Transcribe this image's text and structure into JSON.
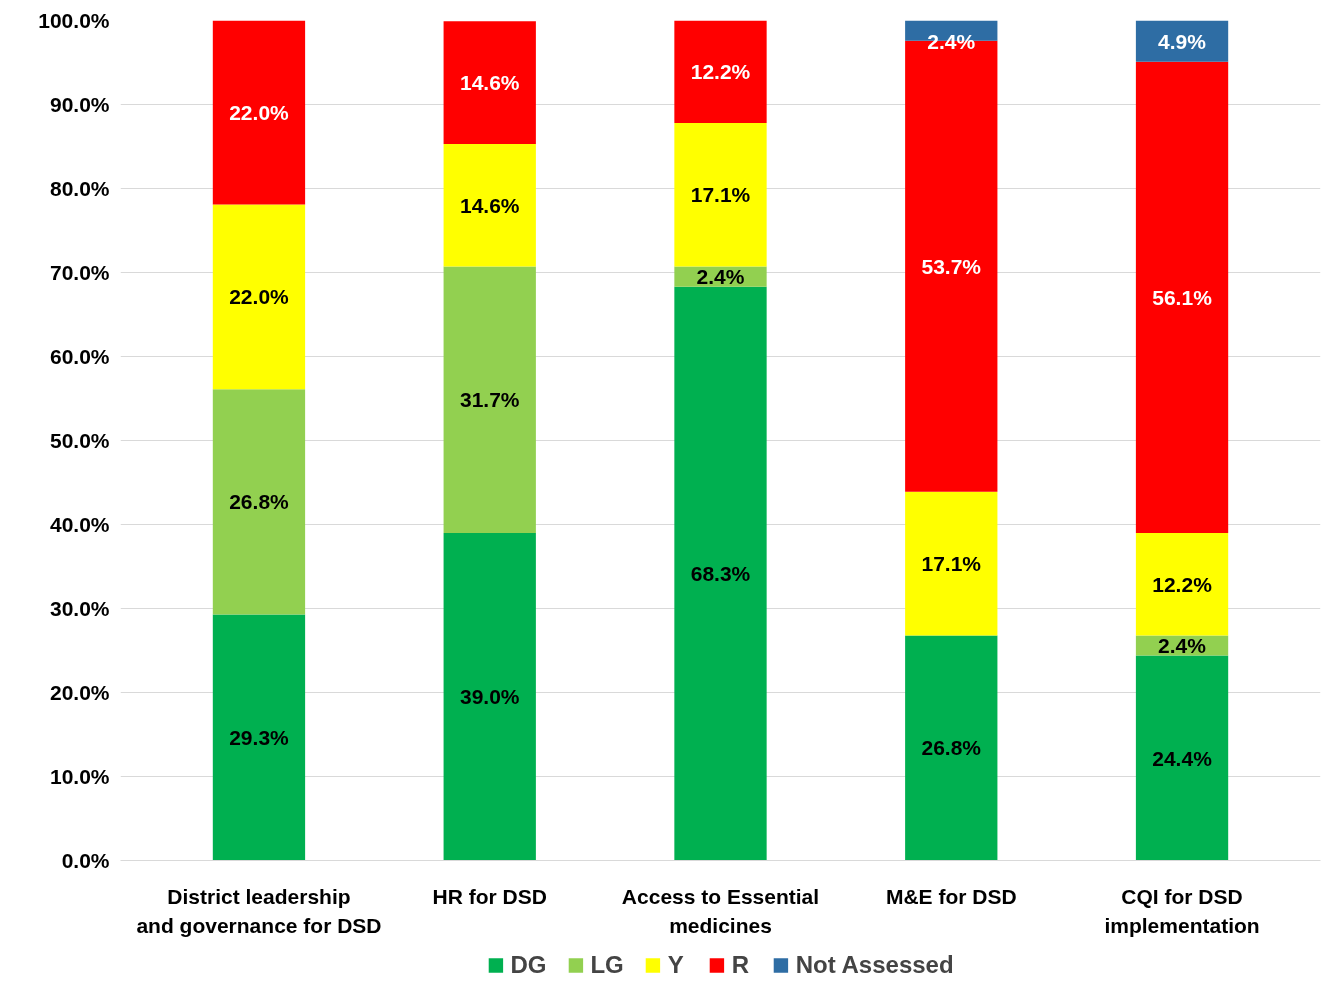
{
  "chart_data": {
    "type": "bar",
    "stacked": true,
    "categories": [
      "District leadership and governance for DSD",
      "HR for DSD",
      "Access to Essential medicines",
      "M&E for DSD",
      "CQI for DSD implementation"
    ],
    "series": [
      {
        "name": "DG",
        "color": "#00b050",
        "values": [
          29.3,
          39.0,
          68.3,
          26.8,
          24.4
        ],
        "value_labels": [
          "29.3%",
          "39.0%",
          "68.3%",
          "26.8%",
          "24.4%"
        ]
      },
      {
        "name": "LG",
        "color": "#92d050",
        "values": [
          26.8,
          31.7,
          2.4,
          null,
          2.4
        ],
        "value_labels": [
          "26.8%",
          "31.7%",
          "2.4%",
          null,
          "2.4%"
        ]
      },
      {
        "name": "Y",
        "color": "#ffff00",
        "values": [
          22.0,
          14.6,
          17.1,
          17.1,
          12.2
        ],
        "value_labels": [
          "22.0%",
          "14.6%",
          "17.1%",
          "17.1%",
          "12.2%"
        ]
      },
      {
        "name": "R",
        "color": "#ff0000",
        "values": [
          22.0,
          14.6,
          12.2,
          53.7,
          56.1
        ],
        "value_labels": [
          "22.0%",
          "14.6%",
          "12.2%",
          "53.7%",
          "56.1%"
        ]
      },
      {
        "name": "Not Assessed",
        "color": "#2e6da4",
        "values": [
          null,
          null,
          null,
          2.4,
          4.9
        ],
        "value_labels": [
          null,
          null,
          null,
          "2.4%",
          "4.9%"
        ]
      }
    ],
    "ylim": [
      0,
      100
    ],
    "yticks": [
      {
        "value": 0,
        "label": "0.0%"
      },
      {
        "value": 10,
        "label": "10.0%"
      },
      {
        "value": 20,
        "label": "20.0%"
      },
      {
        "value": 30,
        "label": "30.0%"
      },
      {
        "value": 40,
        "label": "40.0%"
      },
      {
        "value": 50,
        "label": "50.0%"
      },
      {
        "value": 60,
        "label": "60.0%"
      },
      {
        "value": 70,
        "label": "70.0%"
      },
      {
        "value": 80,
        "label": "80.0%"
      },
      {
        "value": 90,
        "label": "90.0%"
      },
      {
        "value": 100,
        "label": "100.0%"
      }
    ],
    "grid": "y",
    "legend": "bottom"
  }
}
